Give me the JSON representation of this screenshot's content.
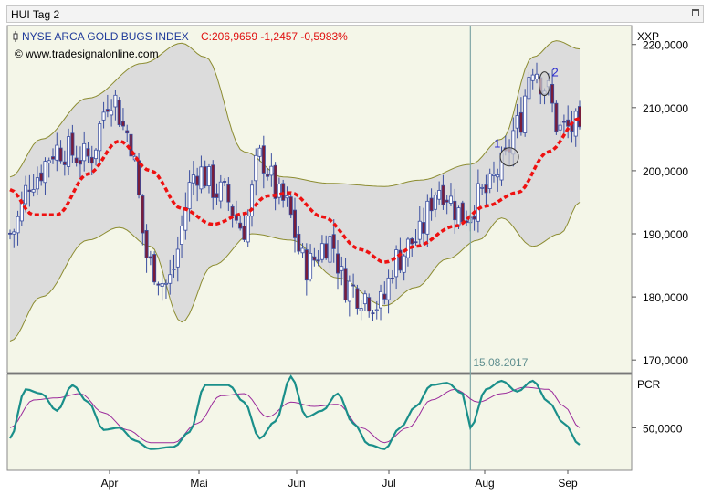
{
  "window": {
    "title": "HUI Tag 2"
  },
  "header": {
    "instrument": "NYSE ARCA GOLD BUGS INDEX",
    "quote": "C:206,9659 -1,2457 -0,5983%",
    "copyright": "© www.tradesignalonline.com"
  },
  "colors": {
    "plot_bg": "#f4f6e8",
    "band_fill": "#dcdcdc",
    "band_line": "#8c8c30",
    "ma": "#ee1111",
    "up_candle": "#ffffff",
    "down_candle": "#7a1d3a",
    "wick": "#3a4ea0",
    "cursor": "#7fa6a6",
    "pcr_main": "#1a8f8a",
    "pcr_signal": "#9b2a9b",
    "marker": "#2b2bd0"
  },
  "chart_data": [
    {
      "type": "candlestick",
      "title": "NYSE ARCA GOLD BUGS INDEX",
      "price_axis_label": "XXP",
      "ylim": [
        168000,
        223000
      ],
      "yticks": [
        "170,0000",
        "180,0000",
        "190,0000",
        "200,0000",
        "210,0000",
        "220,0000"
      ],
      "ytick_values": [
        170000,
        180000,
        190000,
        200000,
        210000,
        220000
      ],
      "months": [
        "Apr",
        "Mai",
        "Jun",
        "Jul",
        "Aug",
        "Sep"
      ],
      "cursor": {
        "date": "15.08.2017",
        "index": 118
      },
      "markers": [
        {
          "label": "1",
          "index": 128,
          "value": 202200
        },
        {
          "label": "2",
          "index": 137,
          "value": 213800
        }
      ],
      "bollinger": {
        "mid_start": 199000,
        "mid_end": 209200,
        "upper_knots": [
          [
            0,
            199000
          ],
          [
            8,
            205000
          ],
          [
            20,
            211500
          ],
          [
            34,
            217000
          ],
          [
            44,
            220200
          ],
          [
            50,
            218000
          ],
          [
            60,
            203000
          ],
          [
            70,
            199000
          ],
          [
            82,
            198000
          ],
          [
            96,
            197500
          ],
          [
            105,
            198500
          ],
          [
            118,
            201000
          ],
          [
            126,
            205000
          ],
          [
            134,
            218000
          ],
          [
            140,
            220600
          ],
          [
            146,
            219300
          ]
        ],
        "lower_knots": [
          [
            0,
            173000
          ],
          [
            8,
            180000
          ],
          [
            20,
            189000
          ],
          [
            28,
            191000
          ],
          [
            36,
            188000
          ],
          [
            44,
            176000
          ],
          [
            52,
            185000
          ],
          [
            62,
            190000
          ],
          [
            72,
            189000
          ],
          [
            84,
            183000
          ],
          [
            96,
            178600
          ],
          [
            104,
            181500
          ],
          [
            112,
            186000
          ],
          [
            120,
            189000
          ],
          [
            126,
            192500
          ],
          [
            134,
            188000
          ],
          [
            141,
            190000
          ],
          [
            146,
            195000
          ]
        ]
      },
      "ma_knots": [
        [
          0,
          197000
        ],
        [
          6,
          193000
        ],
        [
          12,
          193000
        ],
        [
          20,
          199500
        ],
        [
          28,
          204700
        ],
        [
          36,
          200000
        ],
        [
          44,
          194000
        ],
        [
          52,
          191500
        ],
        [
          60,
          193200
        ],
        [
          66,
          196000
        ],
        [
          72,
          196500
        ],
        [
          80,
          192700
        ],
        [
          90,
          187500
        ],
        [
          96,
          185500
        ],
        [
          104,
          188000
        ],
        [
          114,
          191200
        ],
        [
          122,
          194400
        ],
        [
          130,
          196500
        ],
        [
          138,
          203000
        ],
        [
          146,
          208300
        ]
      ],
      "price_knots": [
        [
          0,
          190000
        ],
        [
          6,
          199000
        ],
        [
          12,
          203500
        ],
        [
          20,
          202000
        ],
        [
          26,
          212000
        ],
        [
          30,
          206000
        ],
        [
          36,
          185000
        ],
        [
          40,
          182000
        ],
        [
          48,
          200000
        ],
        [
          54,
          196500
        ],
        [
          60,
          191000
        ],
        [
          64,
          202000
        ],
        [
          70,
          195000
        ],
        [
          76,
          185000
        ],
        [
          82,
          189000
        ],
        [
          86,
          182000
        ],
        [
          90,
          180500
        ],
        [
          95,
          178800
        ],
        [
          99,
          186000
        ],
        [
          104,
          189000
        ],
        [
          110,
          197500
        ],
        [
          116,
          193000
        ],
        [
          122,
          196500
        ],
        [
          126,
          200500
        ],
        [
          130,
          207000
        ],
        [
          134,
          217000
        ],
        [
          137,
          213500
        ],
        [
          141,
          206500
        ],
        [
          146,
          206966
        ]
      ]
    },
    {
      "type": "line",
      "name": "PCR",
      "ylim": [
        30000,
        75000
      ],
      "yticks": [
        "50,0000"
      ],
      "ytick_values": [
        50000
      ],
      "main_knots": [
        [
          0,
          45000
        ],
        [
          4,
          68000
        ],
        [
          8,
          66000
        ],
        [
          12,
          58000
        ],
        [
          16,
          70000
        ],
        [
          20,
          62000
        ],
        [
          24,
          49000
        ],
        [
          28,
          50000
        ],
        [
          32,
          44000
        ],
        [
          36,
          40000
        ],
        [
          42,
          41000
        ],
        [
          46,
          48000
        ],
        [
          50,
          70000
        ],
        [
          56,
          70000
        ],
        [
          60,
          62000
        ],
        [
          64,
          45000
        ],
        [
          68,
          53000
        ],
        [
          72,
          74000
        ],
        [
          76,
          55000
        ],
        [
          80,
          58000
        ],
        [
          84,
          66000
        ],
        [
          88,
          52000
        ],
        [
          92,
          42000
        ],
        [
          96,
          40000
        ],
        [
          100,
          50000
        ],
        [
          104,
          60000
        ],
        [
          108,
          70000
        ],
        [
          112,
          71000
        ],
        [
          116,
          66000
        ],
        [
          118,
          50000
        ],
        [
          122,
          68000
        ],
        [
          126,
          72000
        ],
        [
          130,
          67000
        ],
        [
          134,
          72000
        ],
        [
          138,
          62000
        ],
        [
          142,
          52000
        ],
        [
          146,
          42000
        ]
      ],
      "signal_knots": [
        [
          0,
          50000
        ],
        [
          6,
          63000
        ],
        [
          12,
          64000
        ],
        [
          18,
          66000
        ],
        [
          24,
          57000
        ],
        [
          30,
          49000
        ],
        [
          36,
          43000
        ],
        [
          42,
          43000
        ],
        [
          48,
          52000
        ],
        [
          54,
          65000
        ],
        [
          60,
          66000
        ],
        [
          66,
          55000
        ],
        [
          72,
          62000
        ],
        [
          78,
          60000
        ],
        [
          84,
          61000
        ],
        [
          90,
          50000
        ],
        [
          96,
          43000
        ],
        [
          102,
          50000
        ],
        [
          108,
          63000
        ],
        [
          114,
          68000
        ],
        [
          120,
          62000
        ],
        [
          126,
          66000
        ],
        [
          132,
          69000
        ],
        [
          138,
          68000
        ],
        [
          142,
          60000
        ],
        [
          146,
          50000
        ]
      ]
    }
  ]
}
